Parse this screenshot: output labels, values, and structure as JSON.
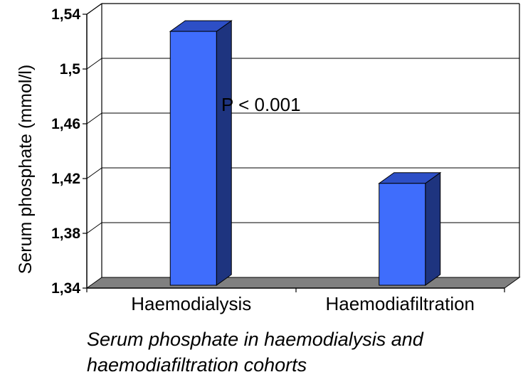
{
  "chart_data": {
    "type": "bar",
    "categories": [
      "Haemodialysis",
      "Haemodiafiltration"
    ],
    "values": [
      1.528,
      1.417
    ],
    "ylabel": "Serum phosphate (mmol/l)",
    "ylim": [
      1.34,
      1.54
    ],
    "yticks": [
      "1,34",
      "1,38",
      "1,42",
      "1,46",
      "1,5",
      "1,54"
    ],
    "annotation": "P < 0.001",
    "caption_lines": [
      "Serum phosphate in haemodialysis and",
      "haemodiafiltration cohorts"
    ],
    "grid": true,
    "style": "3d",
    "colors": {
      "bar_front": "#3f6dfc",
      "bar_side": "#1e347f",
      "bar_top": "#2d4fc6",
      "floor": "#808080"
    }
  }
}
